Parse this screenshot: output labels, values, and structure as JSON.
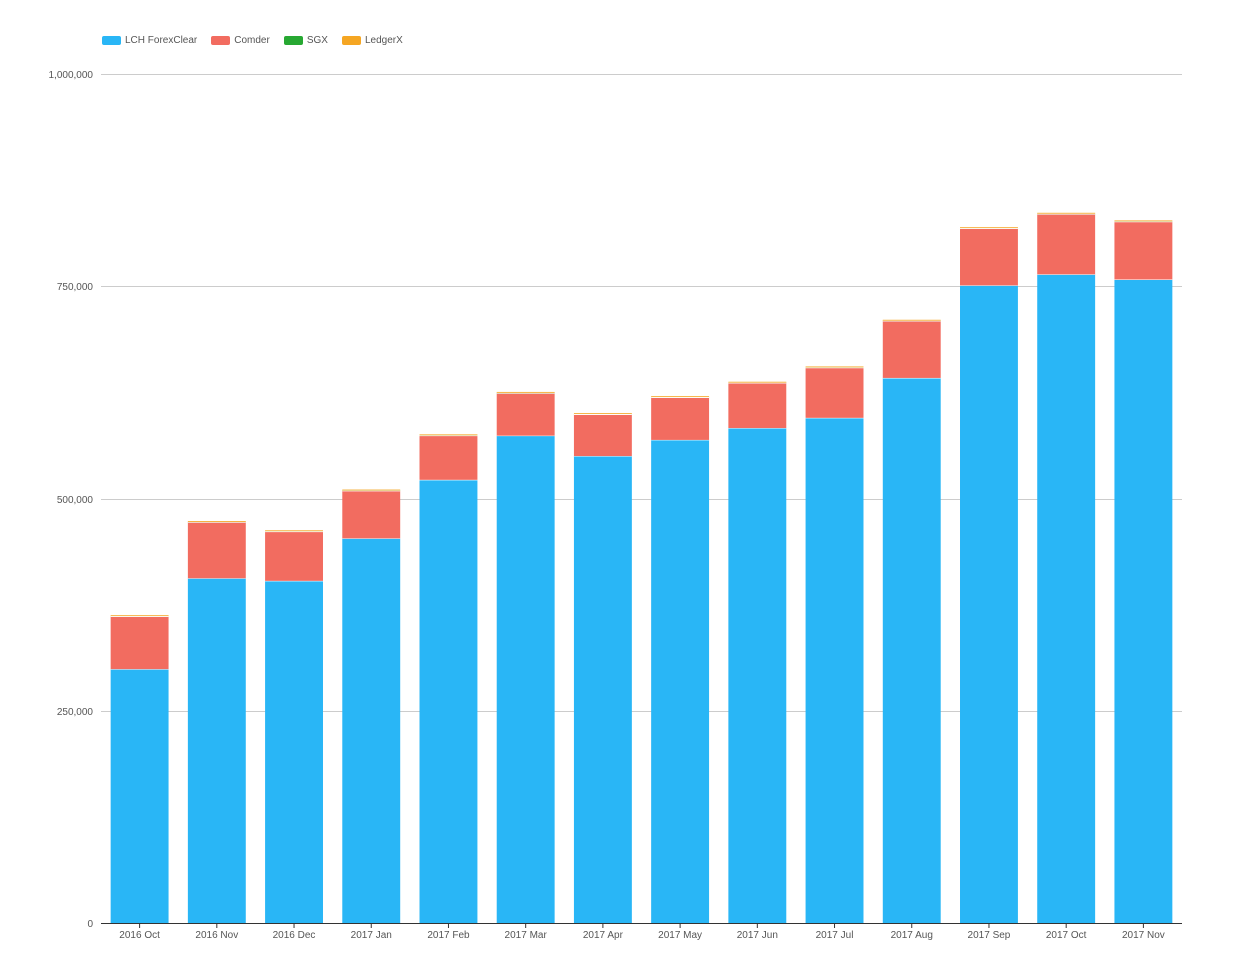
{
  "chart_data": {
    "type": "bar",
    "stacked": true,
    "title": "",
    "xlabel": "",
    "ylabel": "",
    "ylim": [
      0,
      1000000
    ],
    "y_ticks": [
      0,
      250000,
      500000,
      750000,
      1000000
    ],
    "y_tick_labels": [
      "0",
      "250,000",
      "500,000",
      "750,000",
      "1,000,000"
    ],
    "grid": "horizontal",
    "legend_position": "top-left",
    "categories": [
      "2016 Oct",
      "2016 Nov",
      "2016 Dec",
      "2017 Jan",
      "2017 Feb",
      "2017 Mar",
      "2017 Apr",
      "2017 May",
      "2017 Jun",
      "2017 Jul",
      "2017 Aug",
      "2017 Sep",
      "2017 Oct",
      "2017 Nov"
    ],
    "series": [
      {
        "name": "LCH ForexClear",
        "color": "#29b6f6",
        "values": [
          299000,
          406000,
          403000,
          453000,
          522000,
          574000,
          550000,
          569000,
          583000,
          595000,
          642000,
          751000,
          764000,
          758000
        ]
      },
      {
        "name": "Comder",
        "color": "#f26c60",
        "values": [
          62000,
          66000,
          58000,
          56000,
          52000,
          50000,
          49000,
          50000,
          53000,
          59000,
          67000,
          67000,
          71000,
          68000
        ]
      },
      {
        "name": "SGX",
        "color": "#27a832",
        "values": [
          500,
          500,
          500,
          500,
          500,
          500,
          500,
          500,
          500,
          500,
          500,
          500,
          500,
          500
        ]
      },
      {
        "name": "LedgerX",
        "color": "#f5a623",
        "values": [
          1000,
          1000,
          1000,
          1000,
          1000,
          1000,
          1000,
          1000,
          1000,
          1000,
          1000,
          1000,
          1000,
          1000
        ]
      }
    ]
  }
}
